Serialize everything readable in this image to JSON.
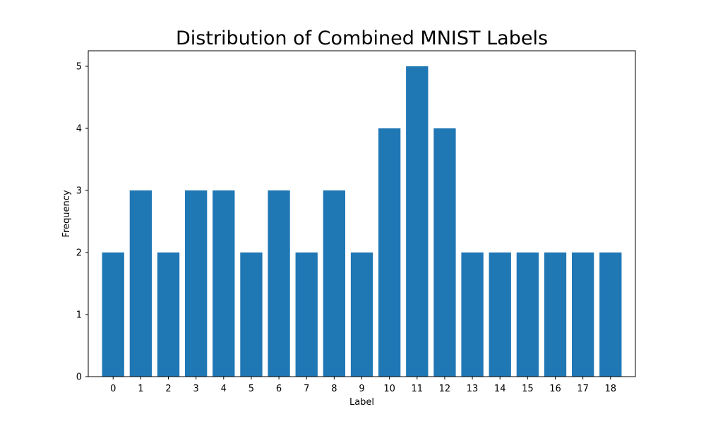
{
  "chart_data": {
    "type": "bar",
    "title": "Distribution of Combined MNIST Labels",
    "xlabel": "Label",
    "ylabel": "Frequency",
    "categories": [
      "0",
      "1",
      "2",
      "3",
      "4",
      "5",
      "6",
      "7",
      "8",
      "9",
      "10",
      "11",
      "12",
      "13",
      "14",
      "15",
      "16",
      "17",
      "18"
    ],
    "values": [
      2,
      3,
      2,
      3,
      3,
      2,
      3,
      2,
      3,
      2,
      4,
      5,
      4,
      2,
      2,
      2,
      2,
      2,
      2
    ],
    "yticks": [
      "0",
      "1",
      "2",
      "3",
      "4",
      "5"
    ],
    "ylim": [
      0,
      5.25
    ],
    "grid": false,
    "legend": "none",
    "bar_color": "#1f77b4"
  }
}
